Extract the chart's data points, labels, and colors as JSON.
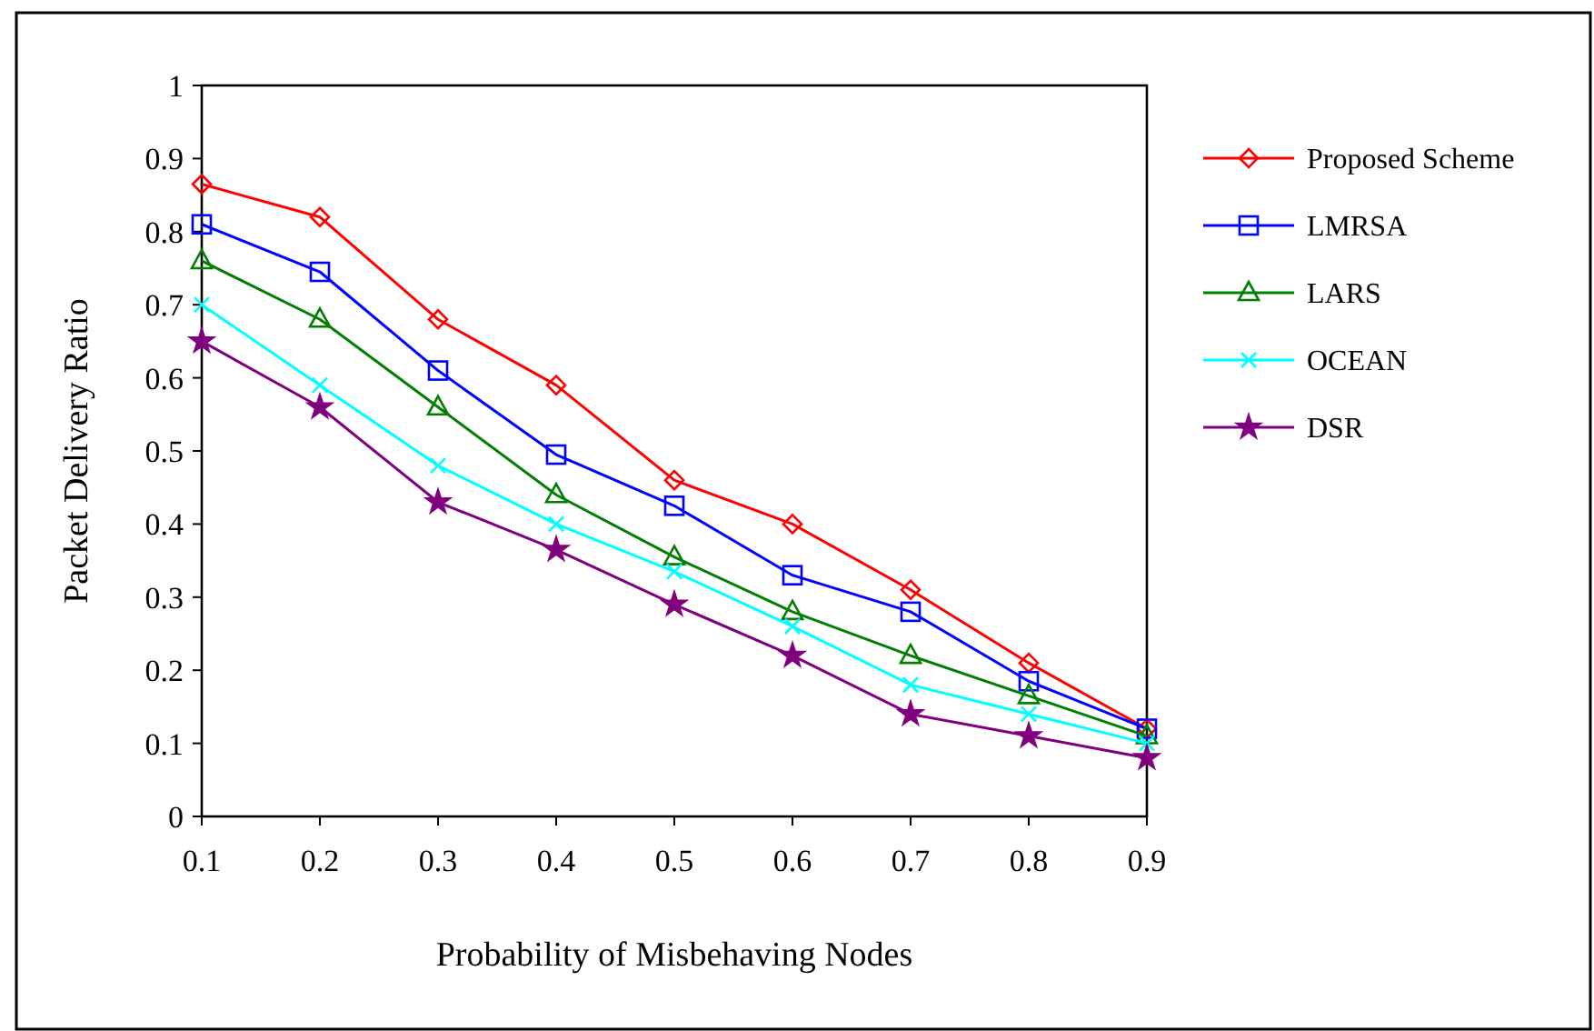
{
  "chart_data": {
    "type": "line",
    "xlabel": "Probability of Misbehaving Nodes",
    "ylabel": "Packet Delivery Ratio",
    "x": [
      0.1,
      0.2,
      0.3,
      0.4,
      0.5,
      0.6,
      0.7,
      0.8,
      0.9
    ],
    "xlim": [
      0.1,
      0.9
    ],
    "xticks": [
      0.1,
      0.2,
      0.3,
      0.4,
      0.5,
      0.6,
      0.7,
      0.8,
      0.9
    ],
    "ylim": [
      0,
      1
    ],
    "yticks": [
      0,
      0.1,
      0.2,
      0.3,
      0.4,
      0.5,
      0.6,
      0.7,
      0.8,
      0.9,
      1
    ],
    "grid": false,
    "legend": "right",
    "series": [
      {
        "name": "Proposed Scheme",
        "color": "#ff0000",
        "marker": "diamond",
        "values": [
          0.865,
          0.82,
          0.68,
          0.59,
          0.46,
          0.4,
          0.31,
          0.21,
          0.12
        ]
      },
      {
        "name": "LMRSA",
        "color": "#0000ff",
        "marker": "square",
        "values": [
          0.81,
          0.745,
          0.61,
          0.495,
          0.425,
          0.33,
          0.28,
          0.185,
          0.12
        ]
      },
      {
        "name": "LARS",
        "color": "#008000",
        "marker": "triangle",
        "values": [
          0.76,
          0.68,
          0.56,
          0.44,
          0.355,
          0.28,
          0.22,
          0.165,
          0.11
        ]
      },
      {
        "name": "OCEAN",
        "color": "#00ffff",
        "marker": "cross",
        "values": [
          0.7,
          0.59,
          0.48,
          0.4,
          0.335,
          0.26,
          0.18,
          0.14,
          0.1
        ]
      },
      {
        "name": "DSR",
        "color": "#800080",
        "marker": "star",
        "values": [
          0.65,
          0.56,
          0.43,
          0.365,
          0.29,
          0.22,
          0.14,
          0.11,
          0.08
        ]
      }
    ]
  }
}
